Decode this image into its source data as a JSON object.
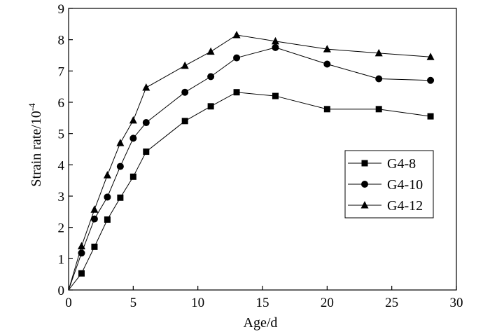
{
  "chart_data": {
    "type": "line",
    "title": "",
    "xlabel": "Age/d",
    "ylabel_base": "Strain rate/10",
    "ylabel_exponent": "-4",
    "xlim": [
      0,
      30
    ],
    "ylim": [
      0,
      9
    ],
    "x_ticks": [
      0,
      5,
      10,
      15,
      20,
      25,
      30
    ],
    "y_ticks": [
      0,
      1,
      2,
      3,
      4,
      5,
      6,
      7,
      8,
      9
    ],
    "grid": false,
    "legend_position": "right-center",
    "series": [
      {
        "name": "G4-8",
        "marker": "square",
        "x": [
          0,
          1,
          2,
          3,
          4,
          5,
          6,
          9,
          11,
          13,
          16,
          20,
          24,
          28
        ],
        "y": [
          0,
          0.53,
          1.38,
          2.25,
          2.95,
          3.62,
          4.42,
          5.4,
          5.87,
          6.32,
          6.2,
          5.78,
          5.78,
          5.55
        ]
      },
      {
        "name": "G4-10",
        "marker": "circle",
        "x": [
          0,
          1,
          2,
          3,
          4,
          5,
          6,
          9,
          11,
          13,
          16,
          20,
          24,
          28
        ],
        "y": [
          0,
          1.18,
          2.27,
          2.97,
          3.95,
          4.85,
          5.35,
          6.32,
          6.82,
          7.42,
          7.75,
          7.22,
          6.75,
          6.7
        ]
      },
      {
        "name": "G4-12",
        "marker": "triangle",
        "x": [
          0,
          1,
          2,
          3,
          4,
          5,
          6,
          9,
          11,
          13,
          16,
          20,
          24,
          28
        ],
        "y": [
          0,
          1.4,
          2.57,
          3.67,
          4.7,
          5.42,
          6.47,
          7.17,
          7.62,
          8.15,
          7.95,
          7.7,
          7.57,
          7.45
        ]
      }
    ]
  }
}
